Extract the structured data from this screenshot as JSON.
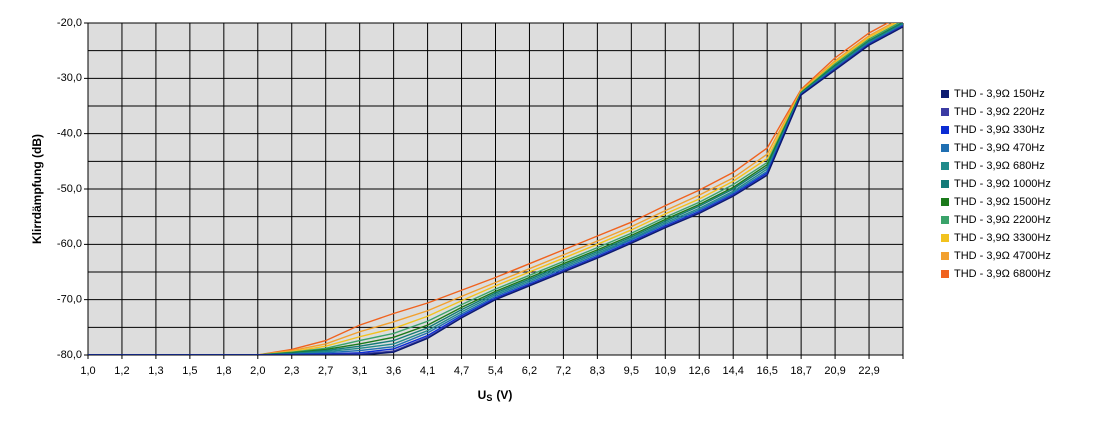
{
  "chart_data": {
    "type": "line",
    "y_label": "Klirrdämpfung (dB)",
    "x_label": {
      "main": "U",
      "sub": "S",
      "rest": "(V)"
    },
    "categories": [
      "1,0",
      "1,2",
      "1,3",
      "1,5",
      "1,8",
      "2,0",
      "2,3",
      "2,7",
      "3,1",
      "3,6",
      "4,1",
      "4,7",
      "5,4",
      "6,2",
      "7,2",
      "8,3",
      "9,5",
      "10,9",
      "12,6",
      "14,4",
      "16,5",
      "18,7",
      "20,9",
      "22,9",
      null
    ],
    "ylim": [
      -80,
      -20
    ],
    "yticks": [
      {
        "value": -80,
        "label": "-80,0"
      },
      {
        "value": -70,
        "label": "-70,0"
      },
      {
        "value": -60,
        "label": "-60,0"
      },
      {
        "value": -50,
        "label": "-50,0"
      },
      {
        "value": -40,
        "label": "-40,0"
      },
      {
        "value": -30,
        "label": "-30,0"
      },
      {
        "value": -20,
        "label": "-20,0"
      }
    ],
    "minor_yticks": [
      -75,
      -65,
      -55,
      -45,
      -35,
      -25
    ],
    "grid": true,
    "legend": "right",
    "series": [
      {
        "name": "THD - 3,9Ω 150Hz",
        "color": "#0b1a70",
        "values": [
          -80,
          -80,
          -80,
          -80,
          -80,
          -80,
          -80,
          -80,
          -80,
          -79.5,
          -77,
          -73.3,
          -70,
          -67.5,
          -65,
          -62.5,
          -59.8,
          -57,
          -54.4,
          -51.3,
          -47.5,
          -33,
          -28.5,
          -24,
          -20.7
        ]
      },
      {
        "name": "THD - 3,9Ω 220Hz",
        "color": "#3b3ba3",
        "values": [
          -80,
          -80,
          -80,
          -80,
          -80,
          -80,
          -80,
          -79.9,
          -79.8,
          -79.3,
          -76.8,
          -73.2,
          -69.9,
          -67.4,
          -64.9,
          -62.4,
          -59.7,
          -56.9,
          -54.3,
          -51.2,
          -47.4,
          -33,
          -28.4,
          -23.9,
          -20.6
        ]
      },
      {
        "name": "THD - 3,9Ω 330Hz",
        "color": "#0b2cd4",
        "values": [
          -80,
          -80,
          -80,
          -80,
          -80,
          -80,
          -79.9,
          -79.8,
          -79.6,
          -78.9,
          -76.5,
          -72.9,
          -69.7,
          -67.2,
          -64.7,
          -62.2,
          -59.5,
          -56.7,
          -54.1,
          -51,
          -47.1,
          -32.9,
          -28.3,
          -23.8,
          -20.5
        ]
      },
      {
        "name": "THD - 3,9Ω 470Hz",
        "color": "#1f6fb2",
        "values": [
          -80,
          -80,
          -80,
          -80,
          -80,
          -80,
          -79.9,
          -79.6,
          -79.2,
          -78.5,
          -76,
          -72.6,
          -69.4,
          -66.9,
          -64.4,
          -61.9,
          -59.2,
          -56.4,
          -53.8,
          -50.7,
          -46.8,
          -32.9,
          -28.2,
          -23.7,
          -20.4
        ]
      },
      {
        "name": "THD - 3,9Ω 680Hz",
        "color": "#1f8a8a",
        "values": [
          -80,
          -80,
          -80,
          -80,
          -80,
          -80,
          -79.8,
          -79.4,
          -78.8,
          -78,
          -75.6,
          -72.2,
          -69.1,
          -66.6,
          -64.1,
          -61.6,
          -59,
          -56.1,
          -53.5,
          -50.4,
          -46.4,
          -32.8,
          -28,
          -23.5,
          -20.2
        ]
      },
      {
        "name": "THD - 3,9Ω 1000Hz",
        "color": "#137a78",
        "values": [
          -80,
          -80,
          -80,
          -80,
          -80,
          -80,
          -79.7,
          -79.2,
          -78.4,
          -77.4,
          -75.1,
          -71.8,
          -68.8,
          -66.3,
          -63.8,
          -61.3,
          -58.7,
          -55.8,
          -53.1,
          -50,
          -46,
          -32.7,
          -27.8,
          -23.3,
          -20
        ]
      },
      {
        "name": "THD - 3,9Ω 1500Hz",
        "color": "#1b7a1b",
        "values": [
          -80,
          -80,
          -80,
          -80,
          -80,
          -80,
          -79.6,
          -79,
          -78,
          -76.8,
          -74.6,
          -71.4,
          -68.5,
          -66,
          -63.5,
          -61,
          -58.4,
          -55.5,
          -52.8,
          -49.7,
          -45.6,
          -32.6,
          -27.7,
          -23.2,
          -19.9
        ]
      },
      {
        "name": "THD - 3,9Ω 2200Hz",
        "color": "#3aa36a",
        "values": [
          -80,
          -80,
          -80,
          -80,
          -80,
          -80,
          -79.5,
          -78.8,
          -77.4,
          -76.1,
          -73.9,
          -70.9,
          -68.1,
          -65.6,
          -63.1,
          -60.6,
          -58,
          -55.1,
          -52.4,
          -49.2,
          -45.2,
          -32.5,
          -27.4,
          -22.9,
          -19.6
        ]
      },
      {
        "name": "THD - 3,9Ω 3300Hz",
        "color": "#f2c21e",
        "values": [
          -80,
          -80,
          -80,
          -80,
          -80,
          -80,
          -79.4,
          -78.4,
          -76.7,
          -75.2,
          -73,
          -70.2,
          -67.5,
          -65,
          -62.5,
          -60,
          -57.4,
          -54.5,
          -51.8,
          -48.6,
          -44.5,
          -32.4,
          -27.1,
          -22.6,
          -19.3
        ]
      },
      {
        "name": "THD - 3,9Ω 4700Hz",
        "color": "#f2a02e",
        "values": [
          -80,
          -80,
          -80,
          -80,
          -80,
          -80,
          -79.2,
          -78,
          -75.8,
          -74,
          -72,
          -69.4,
          -66.9,
          -64.4,
          -61.9,
          -59.4,
          -56.8,
          -53.9,
          -51.1,
          -48,
          -43.7,
          -32.2,
          -26.8,
          -22.3,
          -19
        ]
      },
      {
        "name": "THD - 3,9Ω 6800Hz",
        "color": "#f0621e",
        "values": [
          -80,
          -80,
          -80,
          -80,
          -80,
          -80,
          -79,
          -77.4,
          -74.6,
          -72.5,
          -70.6,
          -68.3,
          -66,
          -63.5,
          -61,
          -58.5,
          -56,
          -53,
          -50.2,
          -47,
          -42.6,
          -32,
          -26.3,
          -21.8,
          -18.5
        ]
      }
    ]
  }
}
